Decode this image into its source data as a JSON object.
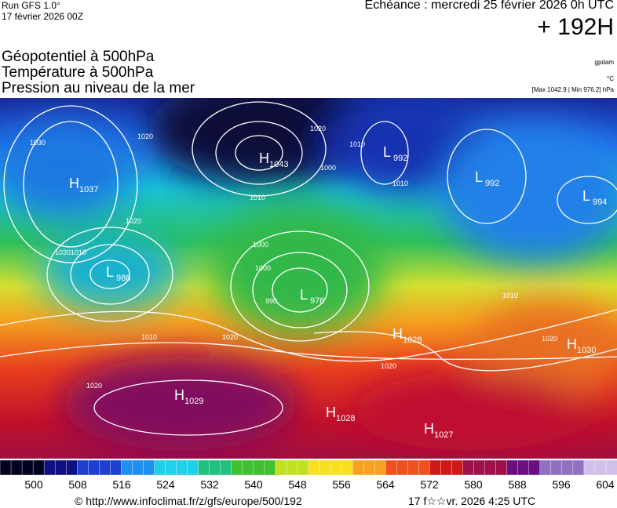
{
  "header": {
    "run": "Run GFS 1.0°",
    "date": "17 février 2026 00Z",
    "echeance": "Echéance : mercredi 25 février 2026 0h UTC",
    "lead": "+ 192H"
  },
  "layers": [
    "Géopotentiel à 500hPa",
    "Température à 500hPa",
    "Pression au niveau de la mer"
  ],
  "units": {
    "geopotential": "gpdam",
    "temperature": "°C",
    "pressure": "[Max 1042.9 | Min 976.2] hPa"
  },
  "centers": [
    {
      "type": "H",
      "value": "1037"
    },
    {
      "type": "H",
      "value": "1043"
    },
    {
      "type": "L",
      "value": "992"
    },
    {
      "type": "L",
      "value": "992"
    },
    {
      "type": "L",
      "value": "994"
    },
    {
      "type": "L",
      "value": "988"
    },
    {
      "type": "L",
      "value": "976"
    },
    {
      "type": "H",
      "value": "1028"
    },
    {
      "type": "H",
      "value": "1030"
    },
    {
      "type": "H",
      "value": "1029"
    },
    {
      "type": "H",
      "value": "1028"
    },
    {
      "type": "H",
      "value": "1027"
    }
  ],
  "isobar_labels": [
    "1030",
    "1020",
    "1020",
    "1010",
    "1000",
    "1010",
    "1020",
    "1030",
    "1010",
    "1000",
    "990",
    "1010",
    "1020",
    "1020",
    "1010",
    "1000",
    "1010",
    "1020",
    "1020"
  ],
  "colorbar": {
    "ticks": [
      500,
      508,
      516,
      524,
      532,
      540,
      548,
      556,
      564,
      572,
      580,
      588,
      596,
      604
    ]
  },
  "footer": {
    "credit": "© http://www.infoclimat.fr/z/gfs/europe/500/192",
    "timestamp": "17 f☆☆vr. 2026  4:25 UTC"
  }
}
